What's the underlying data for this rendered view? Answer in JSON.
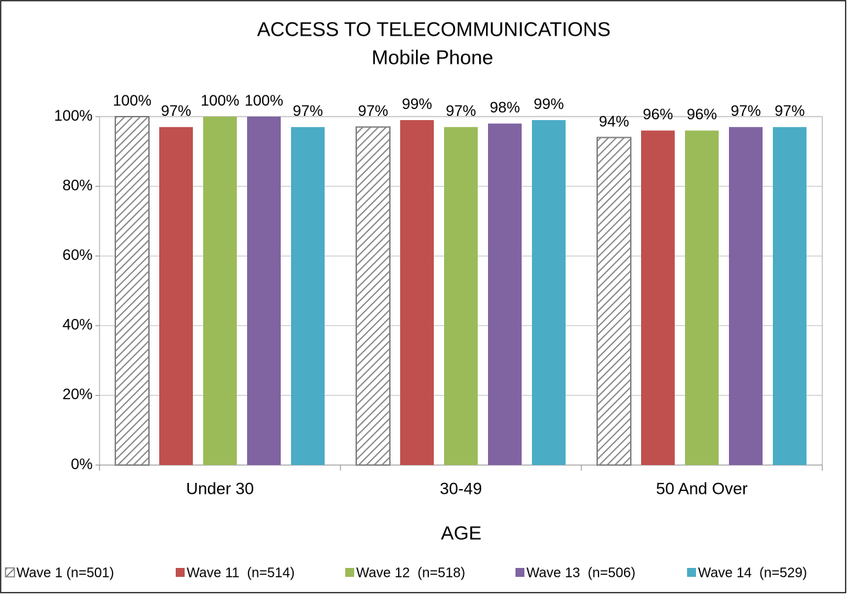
{
  "chart_data": {
    "type": "bar",
    "title": "ACCESS TO TELECOMMUNICATIONS",
    "subtitle": "Mobile Phone",
    "x_label": "AGE",
    "categories": [
      "Under 30",
      "30-49",
      "50 And Over"
    ],
    "series": [
      {
        "name": "Wave 1 (n=501)",
        "color": "#808080",
        "hatch": true,
        "values": [
          100,
          97,
          94
        ],
        "value_labels": [
          "100%",
          "97%",
          "94%"
        ]
      },
      {
        "name": "Wave 11  (n=514)",
        "color": "#c0504d",
        "values": [
          97,
          99,
          96
        ],
        "value_labels": [
          "97%",
          "99%",
          "96%"
        ]
      },
      {
        "name": "Wave 12  (n=518)",
        "color": "#9bbb59",
        "values": [
          100,
          97,
          96
        ],
        "value_labels": [
          "100%",
          "97%",
          "96%"
        ]
      },
      {
        "name": "Wave 13  (n=506)",
        "color": "#8064a2",
        "values": [
          100,
          98,
          97
        ],
        "value_labels": [
          "100%",
          "98%",
          "97%"
        ]
      },
      {
        "name": "Wave 14  (n=529)",
        "color": "#4bacc6",
        "values": [
          97,
          99,
          97
        ],
        "value_labels": [
          "97%",
          "99%",
          "97%"
        ]
      }
    ],
    "ylim": [
      0,
      100
    ],
    "yticks": [
      {
        "value": 0,
        "label": "0%"
      },
      {
        "value": 20,
        "label": "20%"
      },
      {
        "value": 40,
        "label": "40%"
      },
      {
        "value": 60,
        "label": "60%"
      },
      {
        "value": 80,
        "label": "80%"
      },
      {
        "value": 100,
        "label": "100%"
      }
    ],
    "grid": true,
    "legend": "bottom"
  }
}
